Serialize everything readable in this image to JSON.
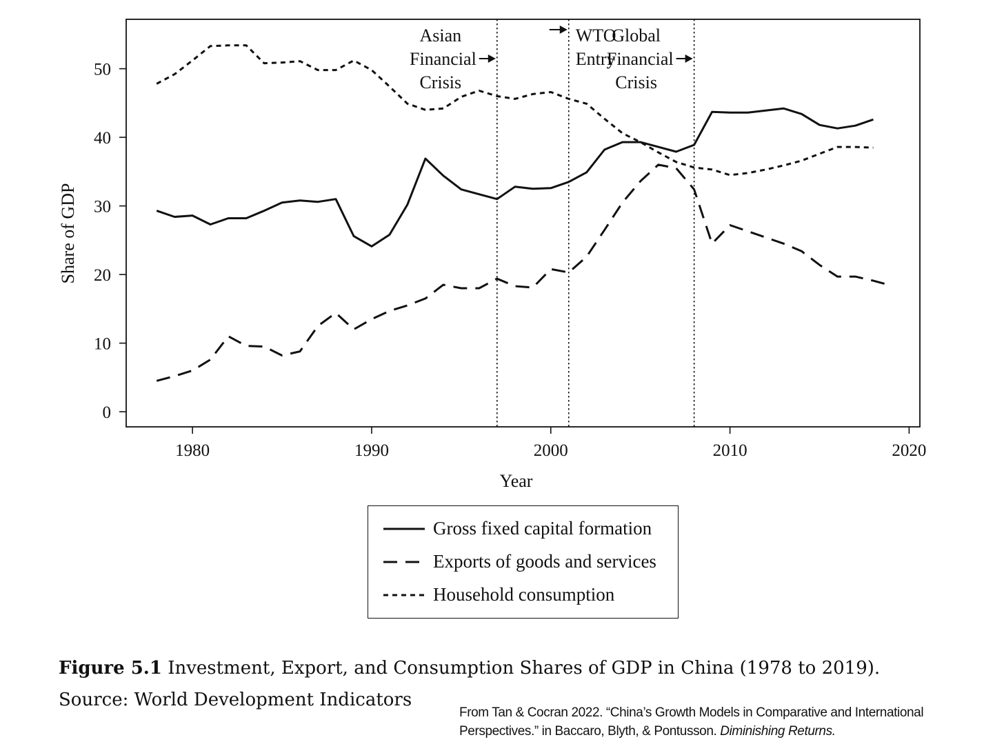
{
  "chart_data": {
    "type": "line",
    "xlabel": "Year",
    "ylabel": "Share of GDP",
    "xlim": [
      1976.3,
      2020.6
    ],
    "ylim": [
      -2.2,
      57.2
    ],
    "x_ticks": [
      1980,
      1990,
      2000,
      2010,
      2020
    ],
    "y_ticks": [
      0,
      10,
      20,
      30,
      40,
      50
    ],
    "grid": false,
    "legend_position": "below",
    "events": [
      {
        "year": 1997,
        "lines": [
          "Asian",
          "Financial",
          "Crisis"
        ]
      },
      {
        "year": 2001,
        "lines": [
          "WTO",
          "Entry"
        ]
      },
      {
        "year": 2008,
        "lines": [
          "Global",
          "Financial",
          "Crisis"
        ]
      }
    ],
    "series": [
      {
        "name": "Gross fixed capital formation",
        "style": "solid",
        "x": [
          1978,
          1979,
          1980,
          1981,
          1982,
          1983,
          1984,
          1985,
          1986,
          1987,
          1988,
          1989,
          1990,
          1991,
          1992,
          1993,
          1994,
          1995,
          1996,
          1997,
          1998,
          1999,
          2000,
          2001,
          2002,
          2003,
          2004,
          2005,
          2006,
          2007,
          2008,
          2009,
          2010,
          2011,
          2012,
          2013,
          2014,
          2015,
          2016,
          2017,
          2018
        ],
        "y": [
          29.3,
          28.4,
          28.6,
          27.3,
          28.2,
          28.2,
          29.3,
          30.5,
          30.8,
          30.6,
          31.0,
          25.6,
          24.1,
          25.8,
          30.2,
          36.9,
          34.4,
          32.4,
          31.7,
          31.0,
          32.8,
          32.5,
          32.6,
          33.5,
          34.9,
          38.2,
          39.3,
          39.3,
          38.6,
          37.9,
          38.9,
          43.7,
          43.6,
          43.6,
          43.9,
          44.2,
          43.4,
          41.8,
          41.3,
          41.7,
          42.6
        ]
      },
      {
        "name": "Exports of goods and services",
        "style": "dashed",
        "x": [
          1978,
          1979,
          1980,
          1981,
          1982,
          1983,
          1984,
          1985,
          1986,
          1987,
          1988,
          1989,
          1990,
          1991,
          1992,
          1993,
          1994,
          1995,
          1996,
          1997,
          1998,
          1999,
          2000,
          2001,
          2002,
          2003,
          2004,
          2005,
          2006,
          2007,
          2008,
          2009,
          2010,
          2011,
          2012,
          2013,
          2014,
          2015,
          2016,
          2017,
          2018,
          2019
        ],
        "y": [
          4.5,
          5.2,
          6.0,
          7.6,
          11.0,
          9.6,
          9.5,
          8.2,
          8.8,
          12.5,
          14.4,
          12.0,
          13.5,
          14.7,
          15.5,
          16.5,
          18.5,
          18.0,
          18.0,
          19.4,
          18.3,
          18.1,
          20.8,
          20.3,
          22.6,
          26.5,
          30.5,
          33.6,
          36.0,
          35.5,
          32.4,
          24.5,
          27.2,
          26.3,
          25.4,
          24.5,
          23.4,
          21.4,
          19.7,
          19.7,
          19.1,
          18.4
        ]
      },
      {
        "name": "Household consumption",
        "style": "dotted",
        "x": [
          1978,
          1979,
          1980,
          1981,
          1982,
          1983,
          1984,
          1985,
          1986,
          1987,
          1988,
          1989,
          1990,
          1991,
          1992,
          1993,
          1994,
          1995,
          1996,
          1997,
          1998,
          1999,
          2000,
          2001,
          2002,
          2003,
          2004,
          2005,
          2006,
          2007,
          2008,
          2009,
          2010,
          2011,
          2012,
          2013,
          2014,
          2015,
          2016,
          2017,
          2018
        ],
        "y": [
          47.8,
          49.2,
          51.2,
          53.3,
          53.4,
          53.4,
          50.8,
          50.9,
          51.1,
          49.8,
          49.8,
          51.2,
          49.8,
          47.4,
          44.9,
          44.0,
          44.2,
          45.9,
          46.8,
          46.0,
          45.6,
          46.3,
          46.6,
          45.6,
          44.9,
          42.7,
          40.6,
          39.3,
          37.8,
          36.4,
          35.6,
          35.3,
          34.5,
          34.8,
          35.3,
          35.9,
          36.6,
          37.6,
          38.6,
          38.6,
          38.5
        ]
      }
    ]
  },
  "legend": {
    "items": [
      {
        "label": "Gross fixed capital formation"
      },
      {
        "label": "Exports of goods and services"
      },
      {
        "label": "Household consumption"
      }
    ]
  },
  "caption": {
    "label": "Figure 5.1",
    "text": " Investment, Export, and Consumption Shares of GDP in China (1978 to 2019). Source: World Development Indicators"
  },
  "credit": {
    "text": "From Tan & Cocran 2022. “China’s Growth Models in Comparative and International Perspectives.” in Baccaro, Blyth, & Pontusson. ",
    "book_title": "Diminishing Returns."
  }
}
